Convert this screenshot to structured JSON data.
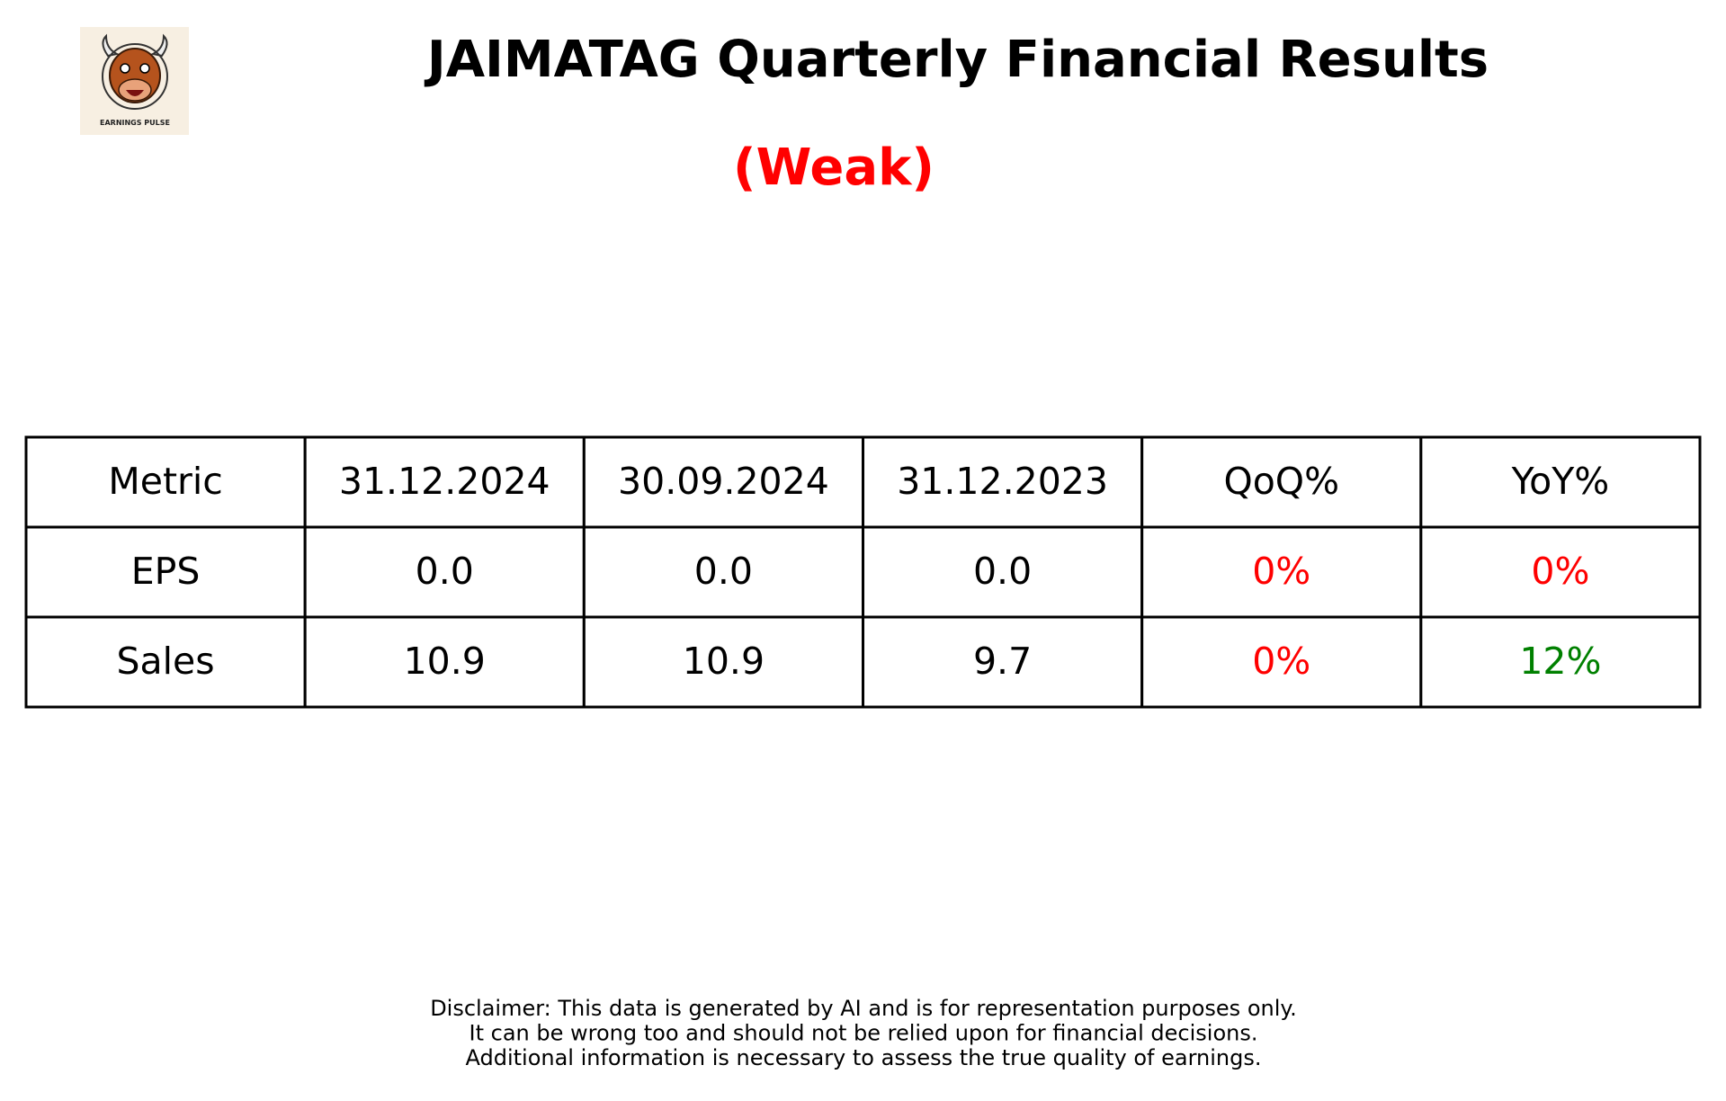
{
  "header": {
    "title": "JAIMATAG Quarterly Financial Results",
    "rating": "(Weak)",
    "logo_text": "EARNINGS PULSE"
  },
  "table": {
    "columns": [
      "Metric",
      "31.12.2024",
      "30.09.2024",
      "31.12.2023",
      "QoQ%",
      "YoY%"
    ],
    "rows": [
      [
        "EPS",
        "0.0",
        "0.0",
        "0.0",
        "0%",
        "0%"
      ],
      [
        "Sales",
        "10.9",
        "10.9",
        "9.7",
        "0%",
        "12%"
      ]
    ],
    "cell_colors": [
      [
        "#000000",
        "#000000",
        "#000000",
        "#000000",
        "#ff0000",
        "#ff0000"
      ],
      [
        "#000000",
        "#000000",
        "#000000",
        "#000000",
        "#ff0000",
        "#008000"
      ]
    ]
  },
  "disclaimer": [
    "Disclaimer: This data is generated by AI and is for representation purposes only.",
    "It can be wrong too and should not be relied upon for financial decisions.",
    "Additional information is necessary to assess the true quality of earnings."
  ]
}
